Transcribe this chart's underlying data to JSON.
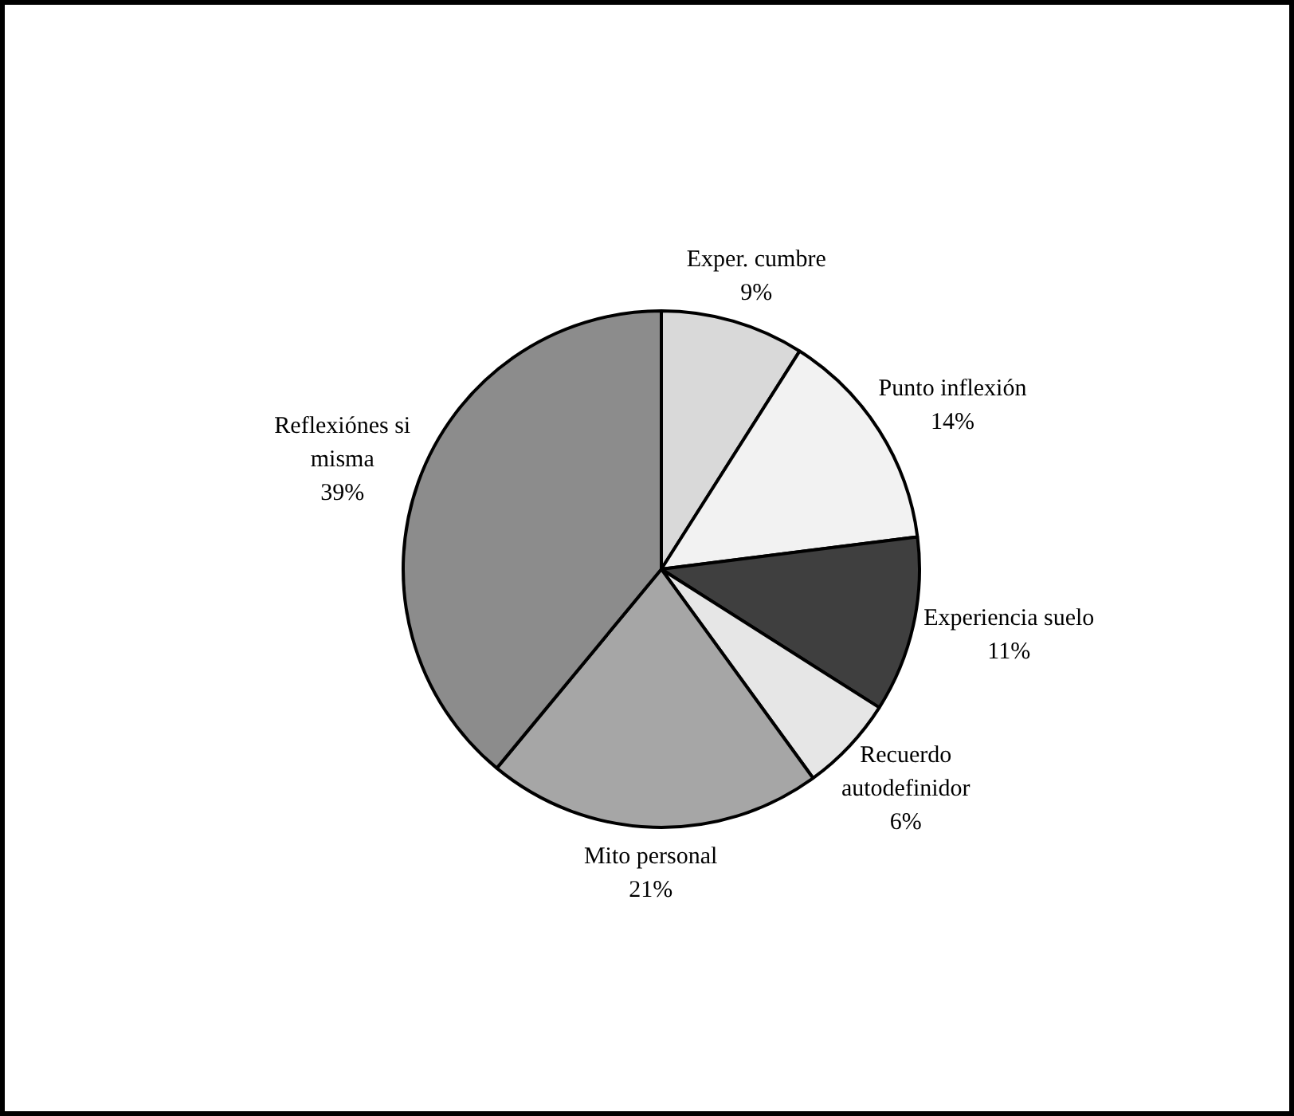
{
  "chart_data": {
    "type": "pie",
    "categories": [
      "Exper. cumbre",
      "Punto inflexión",
      "Experiencia suelo",
      "Recuerdo autodefinidor",
      "Mito personal",
      "Reflexiónes si misma"
    ],
    "values": [
      9,
      14,
      11,
      6,
      21,
      39
    ],
    "value_labels": [
      "9%",
      "14%",
      "11%",
      "6%",
      "21%",
      "39%"
    ],
    "colors": [
      "#d9d9d9",
      "#f2f2f2",
      "#3f3f3f",
      "#e6e6e6",
      "#a6a6a6",
      "#8c8c8c"
    ],
    "legend": false
  }
}
